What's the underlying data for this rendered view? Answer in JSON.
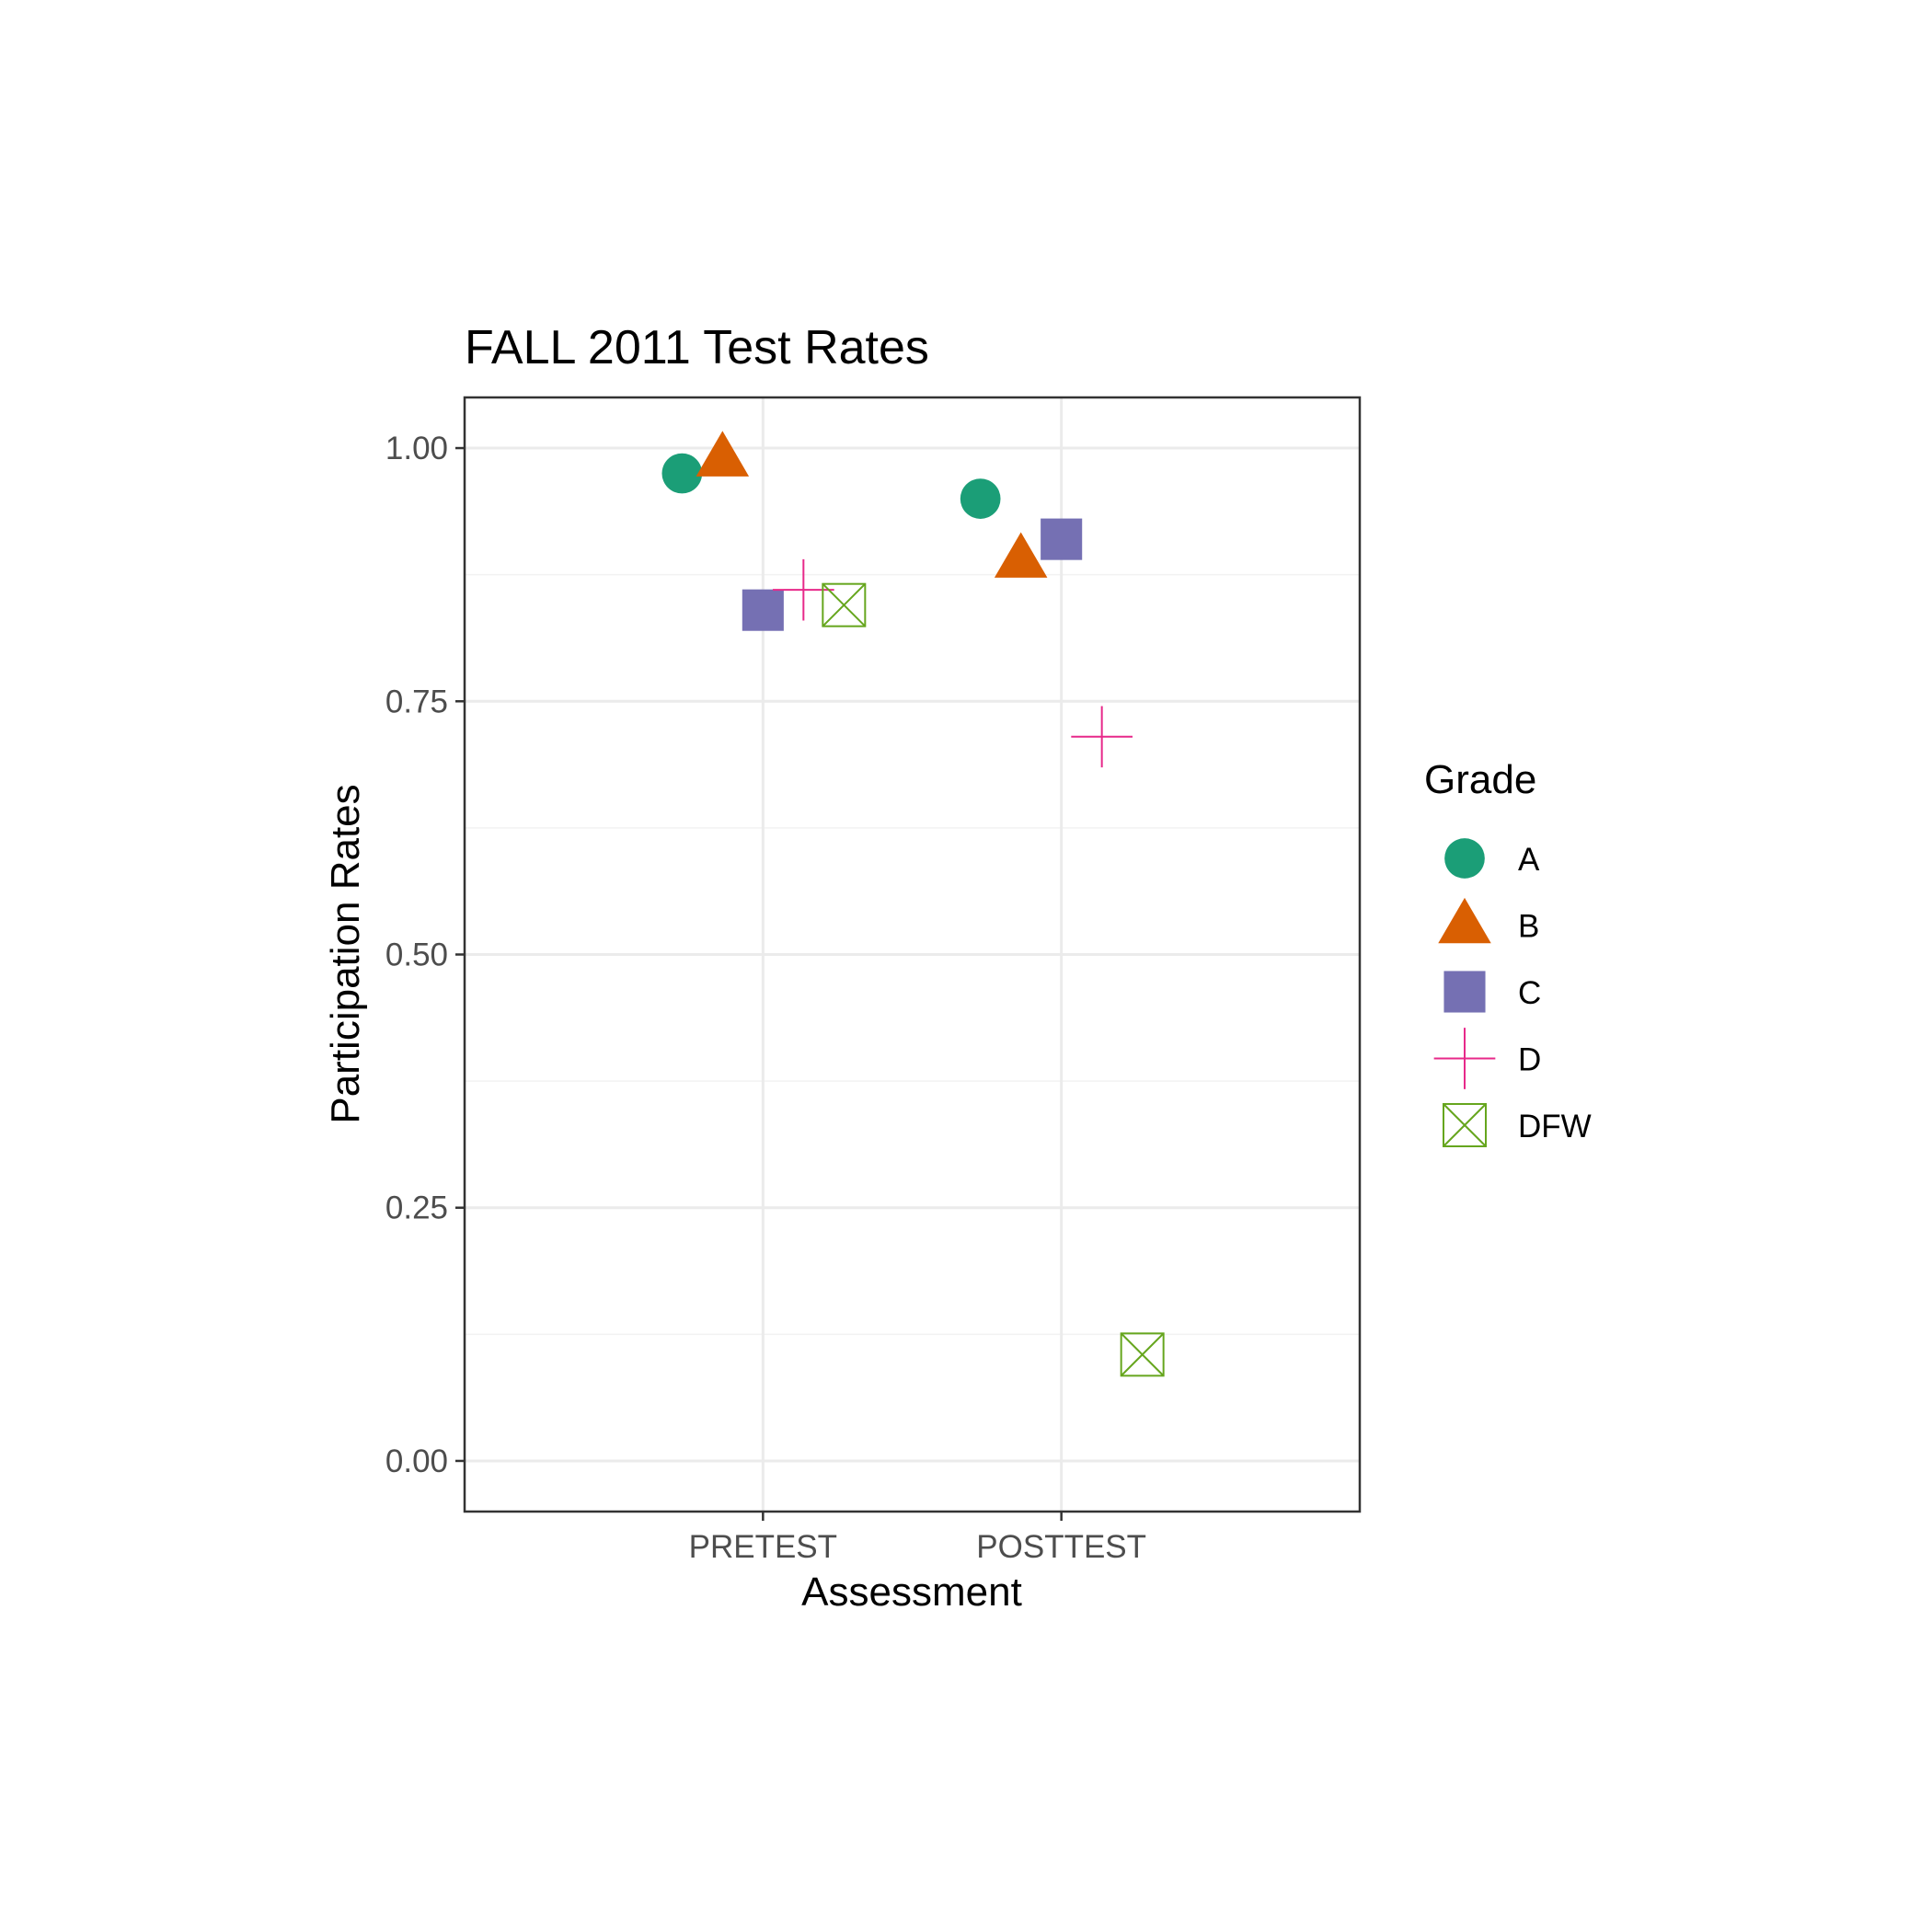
{
  "chart_data": {
    "type": "scatter",
    "title": "FALL 2011 Test Rates",
    "xlabel": "Assessment",
    "ylabel": "Participation Rates",
    "categories": [
      "PRETEST",
      "POSTTEST"
    ],
    "ylim": [
      -0.05,
      1.05
    ],
    "yticks": [
      0.0,
      0.25,
      0.5,
      0.75,
      1.0
    ],
    "ytick_labels": [
      "0.00",
      "0.25",
      "0.50",
      "0.75",
      "1.00"
    ],
    "grid": true,
    "legend": {
      "title": "Grade",
      "position": "right"
    },
    "series": [
      {
        "name": "A",
        "shape": "circle",
        "color": "#1b9e77",
        "values": [
          0.975,
          0.95
        ]
      },
      {
        "name": "B",
        "shape": "triangle",
        "color": "#d95f02",
        "values": [
          0.99,
          0.89
        ]
      },
      {
        "name": "C",
        "shape": "square",
        "color": "#7570b3",
        "values": [
          0.84,
          0.91
        ]
      },
      {
        "name": "D",
        "shape": "plus",
        "color": "#e7298a",
        "values": [
          0.86,
          0.715
        ]
      },
      {
        "name": "DFW",
        "shape": "boxed-x",
        "color": "#66a61e",
        "values": [
          0.845,
          0.105
        ]
      }
    ]
  }
}
